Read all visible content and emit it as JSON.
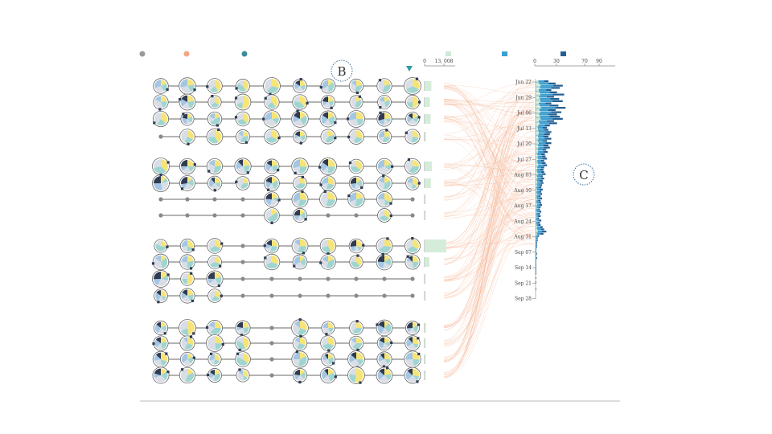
{
  "legend_left": {
    "items": [
      {
        "label": "",
        "color": "#9a9a9a"
      },
      {
        "label": "",
        "color": "#f4a582"
      },
      {
        "label": "",
        "color": "#3a8c9a"
      }
    ]
  },
  "legend_right": {
    "items": [
      {
        "label": "",
        "color": "#cfe8d6"
      },
      {
        "label": "",
        "color": "#3a9fd0"
      },
      {
        "label": "",
        "color": "#245f94"
      }
    ]
  },
  "callouts": {
    "b": "B",
    "c": "C"
  },
  "mid_axis": {
    "ticks": [
      "0",
      "13, 008"
    ]
  },
  "hist_axis": {
    "ticks": [
      "0",
      "30",
      "70",
      "90"
    ]
  },
  "colors": {
    "pie": [
      "#f7e479",
      "#9fd5d1",
      "#d9dde6",
      "#a3c6e4",
      "#2f3b52",
      "#e8b4c2"
    ],
    "node": "#8a8a8a",
    "flow": "#f4b899",
    "bar_light": "#3a9fd0",
    "bar_dark": "#245f94",
    "bar_pale": "#cfe8d6",
    "mid_box": "#d4ecd9"
  },
  "icons": {
    "marker": "triangle-down-icon"
  },
  "groups": [
    {
      "rows": [
        [
          1,
          1,
          1,
          1,
          1,
          1,
          1,
          1,
          1,
          1
        ],
        [
          1,
          1,
          1,
          1,
          1,
          1,
          1,
          1,
          1,
          1
        ],
        [
          1,
          1,
          1,
          1,
          1,
          1,
          1,
          1,
          1,
          1
        ],
        [
          0,
          1,
          1,
          1,
          1,
          1,
          1,
          1,
          1,
          1
        ]
      ]
    },
    {
      "rows": [
        [
          1,
          1,
          1,
          1,
          1,
          1,
          1,
          1,
          1,
          1
        ],
        [
          1,
          1,
          1,
          1,
          1,
          1,
          1,
          1,
          1,
          1
        ],
        [
          0,
          0,
          0,
          0,
          1,
          1,
          1,
          1,
          1,
          0
        ],
        [
          0,
          0,
          0,
          0,
          1,
          1,
          0,
          0,
          1,
          0
        ]
      ]
    },
    {
      "rows": [
        [
          1,
          1,
          1,
          0,
          1,
          1,
          1,
          1,
          1,
          1
        ],
        [
          1,
          1,
          1,
          0,
          1,
          1,
          1,
          1,
          1,
          1
        ],
        [
          1,
          1,
          1,
          0,
          0,
          0,
          0,
          0,
          0,
          0
        ],
        [
          1,
          1,
          1,
          0,
          0,
          0,
          0,
          0,
          0,
          0
        ]
      ]
    },
    {
      "rows": [
        [
          1,
          1,
          1,
          1,
          0,
          1,
          1,
          1,
          1,
          1
        ],
        [
          1,
          1,
          1,
          1,
          0,
          1,
          1,
          1,
          1,
          1
        ],
        [
          1,
          1,
          1,
          1,
          0,
          1,
          1,
          1,
          1,
          1
        ],
        [
          1,
          1,
          1,
          1,
          0,
          1,
          1,
          1,
          1,
          1
        ]
      ]
    }
  ],
  "mid_bars": [
    {
      "value": 0.28
    },
    {
      "value": 0.22
    },
    {
      "value": 0.25
    },
    {
      "value": 0.06
    },
    {
      "value": 0.3
    },
    {
      "value": 0.26
    },
    {
      "value": 0.05
    },
    {
      "value": 0.05
    },
    {
      "value": 0.9
    },
    {
      "value": 0.2
    },
    {
      "value": 0.05
    },
    {
      "value": 0.05
    },
    {
      "value": 0.06
    },
    {
      "value": 0.05
    },
    {
      "value": 0.05
    },
    {
      "value": 0.05
    }
  ],
  "hist": {
    "dates": [
      {
        "label": "Jun 22",
        "row": 0
      },
      {
        "label": "Jun 29",
        "row": 7
      },
      {
        "label": "Jul 06",
        "row": 14
      },
      {
        "label": "Jul 13",
        "row": 21
      },
      {
        "label": "Jul 20",
        "row": 28
      },
      {
        "label": "Jul 27",
        "row": 35
      },
      {
        "label": "Aug 03",
        "row": 42
      },
      {
        "label": "Aug 10",
        "row": 49
      },
      {
        "label": "Aug 17",
        "row": 56
      },
      {
        "label": "Aug 24",
        "row": 63
      },
      {
        "label": "Aug 31",
        "row": 70
      },
      {
        "label": "Sep 07",
        "row": 77
      },
      {
        "label": "Sep 14",
        "row": 84
      },
      {
        "label": "Sep 21",
        "row": 91
      },
      {
        "label": "Sep 28",
        "row": 98
      }
    ],
    "values": [
      [
        8,
        12,
        18
      ],
      [
        10,
        18,
        28
      ],
      [
        14,
        25,
        38
      ],
      [
        12,
        22,
        34
      ],
      [
        9,
        15,
        22
      ],
      [
        11,
        20,
        30
      ],
      [
        13,
        24,
        40
      ],
      [
        10,
        16,
        26
      ],
      [
        12,
        21,
        33
      ],
      [
        14,
        24,
        38
      ],
      [
        9,
        14,
        22
      ],
      [
        12,
        20,
        32
      ],
      [
        15,
        28,
        42
      ],
      [
        11,
        18,
        28
      ],
      [
        13,
        22,
        36
      ],
      [
        10,
        18,
        30
      ],
      [
        12,
        20,
        34
      ],
      [
        14,
        24,
        38
      ],
      [
        9,
        16,
        26
      ],
      [
        11,
        19,
        30
      ],
      [
        8,
        13,
        20
      ],
      [
        6,
        10,
        16
      ],
      [
        7,
        12,
        18
      ],
      [
        9,
        14,
        22
      ],
      [
        8,
        12,
        20
      ],
      [
        7,
        11,
        18
      ],
      [
        8,
        13,
        22
      ],
      [
        6,
        10,
        16
      ],
      [
        9,
        14,
        22
      ],
      [
        7,
        11,
        18
      ],
      [
        8,
        12,
        20
      ],
      [
        6,
        10,
        15
      ],
      [
        7,
        11,
        17
      ],
      [
        5,
        8,
        13
      ],
      [
        6,
        9,
        14
      ],
      [
        7,
        10,
        16
      ],
      [
        5,
        8,
        12
      ],
      [
        6,
        9,
        14
      ],
      [
        7,
        11,
        16
      ],
      [
        5,
        8,
        12
      ],
      [
        4,
        7,
        11
      ],
      [
        5,
        8,
        12
      ],
      [
        6,
        9,
        14
      ],
      [
        4,
        7,
        10
      ],
      [
        5,
        8,
        12
      ],
      [
        4,
        6,
        10
      ],
      [
        5,
        7,
        11
      ],
      [
        4,
        6,
        9
      ],
      [
        3,
        5,
        8
      ],
      [
        4,
        6,
        10
      ],
      [
        3,
        5,
        8
      ],
      [
        4,
        6,
        9
      ],
      [
        3,
        5,
        7
      ],
      [
        4,
        6,
        9
      ],
      [
        3,
        4,
        7
      ],
      [
        3,
        5,
        8
      ],
      [
        4,
        6,
        9
      ],
      [
        3,
        5,
        7
      ],
      [
        2,
        4,
        6
      ],
      [
        3,
        5,
        8
      ],
      [
        2,
        4,
        6
      ],
      [
        3,
        4,
        7
      ],
      [
        2,
        3,
        5
      ],
      [
        3,
        5,
        8
      ],
      [
        2,
        4,
        6
      ],
      [
        3,
        4,
        7
      ],
      [
        4,
        6,
        10
      ],
      [
        5,
        8,
        12
      ],
      [
        6,
        9,
        15
      ],
      [
        4,
        7,
        11
      ],
      [
        2,
        3,
        5
      ],
      [
        1,
        2,
        3
      ],
      [
        1,
        2,
        3
      ],
      [
        1,
        1,
        2
      ],
      [
        0,
        1,
        2
      ],
      [
        0,
        1,
        2
      ],
      [
        0,
        1,
        1
      ],
      [
        0,
        1,
        1
      ],
      [
        0,
        1,
        2
      ],
      [
        0,
        1,
        1
      ],
      [
        0,
        1,
        2
      ],
      [
        0,
        0,
        1
      ],
      [
        0,
        1,
        1
      ],
      [
        0,
        0,
        1
      ],
      [
        0,
        1,
        1
      ],
      [
        0,
        0,
        1
      ],
      [
        0,
        0,
        1
      ],
      [
        0,
        0,
        1
      ],
      [
        0,
        0,
        0
      ],
      [
        0,
        0,
        1
      ],
      [
        0,
        0,
        0
      ],
      [
        0,
        0,
        1
      ],
      [
        0,
        0,
        0
      ],
      [
        0,
        0,
        0
      ],
      [
        0,
        0,
        1
      ],
      [
        0,
        0,
        0
      ],
      [
        0,
        0,
        0
      ],
      [
        0,
        0,
        0
      ],
      [
        0,
        0,
        0
      ]
    ],
    "max": 90
  }
}
